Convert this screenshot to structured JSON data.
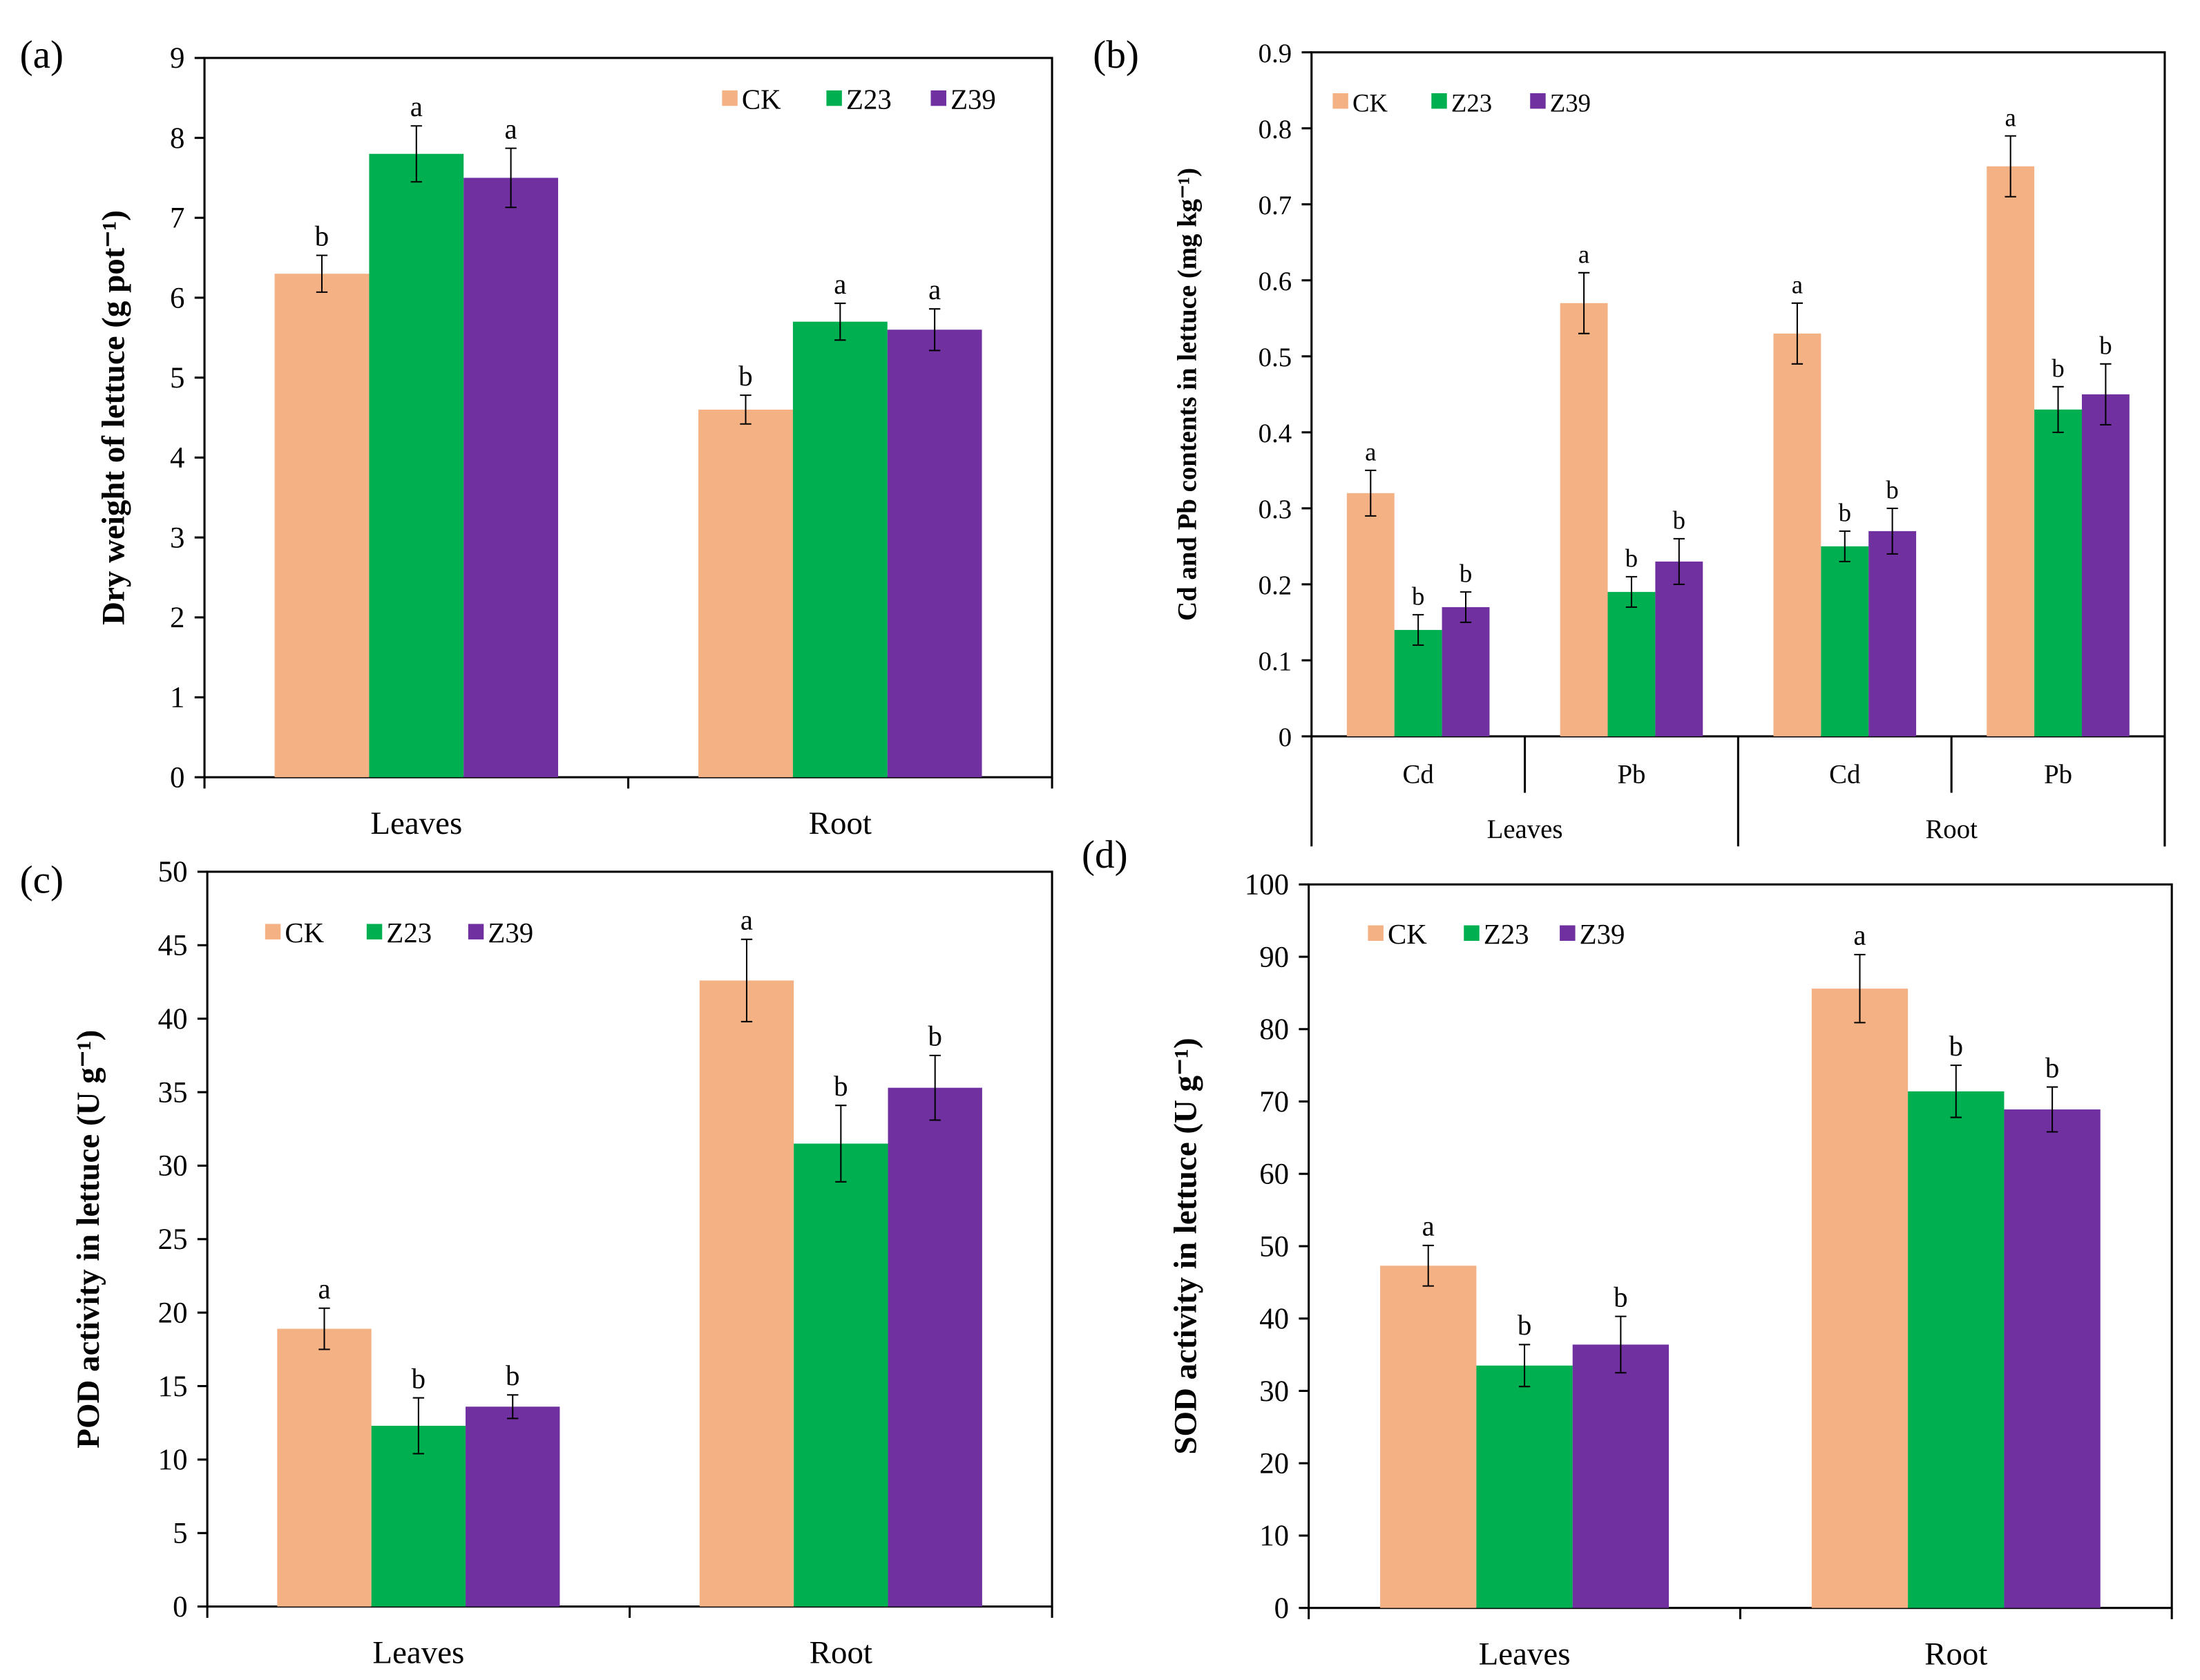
{
  "colors": {
    "CK": "#F4B183",
    "Z23": "#00B050",
    "Z39": "#7030A0"
  },
  "chart_data": [
    {
      "panel": "(a)",
      "type": "bar",
      "ylabel": "Dry weight of lettuce  (g pot⁻¹)",
      "ylim": [
        0,
        9
      ],
      "yticks": [
        0,
        1,
        2,
        3,
        4,
        5,
        6,
        7,
        8,
        9
      ],
      "categories": [
        "Leaves",
        "Root"
      ],
      "legend": [
        "CK",
        "Z23",
        "Z39"
      ],
      "legend_position": "top-right",
      "series": [
        {
          "name": "CK",
          "values": [
            6.3,
            4.6
          ],
          "errors": [
            0.23,
            0.18
          ],
          "letters": [
            "b",
            "b"
          ]
        },
        {
          "name": "Z23",
          "values": [
            7.8,
            5.7
          ],
          "errors": [
            0.35,
            0.23
          ],
          "letters": [
            "a",
            "a"
          ]
        },
        {
          "name": "Z39",
          "values": [
            7.5,
            5.6
          ],
          "errors": [
            0.37,
            0.26
          ],
          "letters": [
            "a",
            "a"
          ]
        }
      ]
    },
    {
      "panel": "(b)",
      "type": "bar",
      "ylabel": "Cd and Pb contents in lettuce  (mg kg⁻¹)",
      "ylim": [
        0,
        0.9
      ],
      "yticks": [
        "0",
        "0.1",
        "0.2",
        "0.3",
        "0.4",
        "0.5",
        "0.6",
        "0.7",
        "0.8",
        "0.9"
      ],
      "categories": [
        "Cd",
        "Pb",
        "Cd",
        "Pb"
      ],
      "groups": [
        "Leaves",
        "Root"
      ],
      "legend": [
        "CK",
        "Z23",
        "Z39"
      ],
      "legend_position": "top-left",
      "series": [
        {
          "name": "CK",
          "values": [
            0.32,
            0.57,
            0.53,
            0.75
          ],
          "errors": [
            0.03,
            0.04,
            0.04,
            0.04
          ],
          "letters": [
            "a",
            "a",
            "a",
            "a"
          ]
        },
        {
          "name": "Z23",
          "values": [
            0.14,
            0.19,
            0.25,
            0.43
          ],
          "errors": [
            0.02,
            0.02,
            0.02,
            0.03
          ],
          "letters": [
            "b",
            "b",
            "b",
            "b"
          ]
        },
        {
          "name": "Z39",
          "values": [
            0.17,
            0.23,
            0.27,
            0.45
          ],
          "errors": [
            0.02,
            0.03,
            0.03,
            0.04
          ],
          "letters": [
            "b",
            "b",
            "b",
            "b"
          ]
        }
      ]
    },
    {
      "panel": "(c)",
      "type": "bar",
      "ylabel": "POD activity in lettuce   (U g⁻¹)",
      "ylim": [
        0,
        50
      ],
      "yticks": [
        0,
        5,
        10,
        15,
        20,
        25,
        30,
        35,
        40,
        45,
        50
      ],
      "categories": [
        "Leaves",
        "Root"
      ],
      "legend": [
        "CK",
        "Z23",
        "Z39"
      ],
      "legend_position": "top-left",
      "series": [
        {
          "name": "CK",
          "values": [
            18.9,
            42.6
          ],
          "errors": [
            1.4,
            2.8
          ],
          "letters": [
            "a",
            "a"
          ]
        },
        {
          "name": "Z23",
          "values": [
            12.3,
            31.5
          ],
          "errors": [
            1.9,
            2.6
          ],
          "letters": [
            "b",
            "b"
          ]
        },
        {
          "name": "Z39",
          "values": [
            13.6,
            35.3
          ],
          "errors": [
            0.8,
            2.2
          ],
          "letters": [
            "b",
            "b"
          ]
        }
      ]
    },
    {
      "panel": "(d)",
      "type": "bar",
      "ylabel": "SOD activity in lettuce   (U g⁻¹)",
      "ylim": [
        0,
        100
      ],
      "yticks": [
        0,
        10,
        20,
        30,
        40,
        50,
        60,
        70,
        80,
        90,
        100
      ],
      "categories": [
        "Leaves",
        "Root"
      ],
      "legend": [
        "CK",
        "Z23",
        "Z39"
      ],
      "legend_position": "top-left",
      "series": [
        {
          "name": "CK",
          "values": [
            47.3,
            85.6
          ],
          "errors": [
            2.8,
            4.7
          ],
          "letters": [
            "a",
            "a"
          ]
        },
        {
          "name": "Z23",
          "values": [
            33.5,
            71.4
          ],
          "errors": [
            2.9,
            3.6
          ],
          "letters": [
            "b",
            "b"
          ]
        },
        {
          "name": "Z39",
          "values": [
            36.4,
            68.9
          ],
          "errors": [
            3.9,
            3.1
          ],
          "letters": [
            "b",
            "b"
          ]
        }
      ]
    }
  ]
}
